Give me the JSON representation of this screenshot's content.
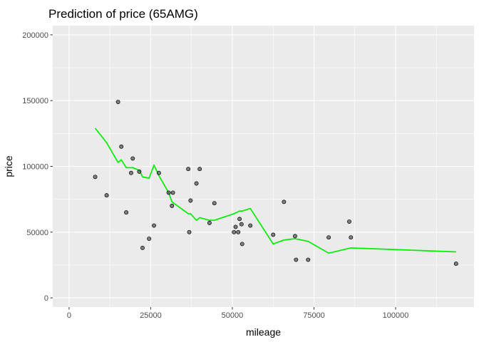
{
  "chart_data": {
    "type": "scatter",
    "title": "Prediction of price (65AMG)",
    "xlabel": "mileage",
    "ylabel": "price",
    "xlim": [
      -5000,
      124000
    ],
    "ylim": [
      -7000,
      207000
    ],
    "xticks": [
      0,
      25000,
      50000,
      75000,
      100000
    ],
    "xtick_labels": [
      "0",
      "25000",
      "50000",
      "75000",
      "100000"
    ],
    "yticks": [
      0,
      50000,
      100000,
      150000,
      200000
    ],
    "ytick_labels": [
      "0",
      "50000",
      "100000",
      "150000",
      "200000"
    ],
    "grid": true,
    "background": "#ebebeb",
    "colors": {
      "points": "#595959",
      "line": "#00ee00"
    },
    "series": [
      {
        "type": "scatter",
        "points": [
          {
            "x": 8000,
            "y": 92000
          },
          {
            "x": 11500,
            "y": 78000
          },
          {
            "x": 15000,
            "y": 149000
          },
          {
            "x": 16000,
            "y": 115000
          },
          {
            "x": 17500,
            "y": 65000
          },
          {
            "x": 19000,
            "y": 95000
          },
          {
            "x": 19500,
            "y": 106000
          },
          {
            "x": 21500,
            "y": 96000
          },
          {
            "x": 22500,
            "y": 38000
          },
          {
            "x": 24500,
            "y": 45000
          },
          {
            "x": 26000,
            "y": 55000
          },
          {
            "x": 27500,
            "y": 95000
          },
          {
            "x": 30500,
            "y": 80000
          },
          {
            "x": 31500,
            "y": 70000
          },
          {
            "x": 31800,
            "y": 80000
          },
          {
            "x": 36500,
            "y": 98000
          },
          {
            "x": 36800,
            "y": 50000
          },
          {
            "x": 37200,
            "y": 74000
          },
          {
            "x": 39000,
            "y": 87000
          },
          {
            "x": 40000,
            "y": 98000
          },
          {
            "x": 43000,
            "y": 57000
          },
          {
            "x": 44500,
            "y": 72000
          },
          {
            "x": 50500,
            "y": 50000
          },
          {
            "x": 51000,
            "y": 54000
          },
          {
            "x": 51800,
            "y": 50000
          },
          {
            "x": 52200,
            "y": 60000
          },
          {
            "x": 52800,
            "y": 56000
          },
          {
            "x": 53000,
            "y": 41000
          },
          {
            "x": 55500,
            "y": 55000
          },
          {
            "x": 62500,
            "y": 48000
          },
          {
            "x": 65800,
            "y": 73000
          },
          {
            "x": 69200,
            "y": 47000
          },
          {
            "x": 69500,
            "y": 29000
          },
          {
            "x": 73200,
            "y": 29000
          },
          {
            "x": 79500,
            "y": 46000
          },
          {
            "x": 85800,
            "y": 58000
          },
          {
            "x": 86300,
            "y": 46000
          },
          {
            "x": 118500,
            "y": 26000
          }
        ]
      },
      {
        "type": "line",
        "points": [
          {
            "x": 8000,
            "y": 129000
          },
          {
            "x": 11500,
            "y": 118000
          },
          {
            "x": 15000,
            "y": 103000
          },
          {
            "x": 16000,
            "y": 105000
          },
          {
            "x": 17500,
            "y": 99000
          },
          {
            "x": 19500,
            "y": 99000
          },
          {
            "x": 21500,
            "y": 97000
          },
          {
            "x": 22500,
            "y": 92000
          },
          {
            "x": 24500,
            "y": 91000
          },
          {
            "x": 26000,
            "y": 101000
          },
          {
            "x": 27500,
            "y": 93000
          },
          {
            "x": 30500,
            "y": 80000
          },
          {
            "x": 31500,
            "y": 73000
          },
          {
            "x": 36500,
            "y": 64000
          },
          {
            "x": 37200,
            "y": 64000
          },
          {
            "x": 39000,
            "y": 59000
          },
          {
            "x": 40000,
            "y": 61000
          },
          {
            "x": 43000,
            "y": 59000
          },
          {
            "x": 44500,
            "y": 59000
          },
          {
            "x": 50500,
            "y": 64000
          },
          {
            "x": 52200,
            "y": 66000
          },
          {
            "x": 53000,
            "y": 66000
          },
          {
            "x": 55500,
            "y": 68000
          },
          {
            "x": 62500,
            "y": 41000
          },
          {
            "x": 65800,
            "y": 44000
          },
          {
            "x": 69200,
            "y": 45000
          },
          {
            "x": 73200,
            "y": 43000
          },
          {
            "x": 79500,
            "y": 34000
          },
          {
            "x": 86300,
            "y": 38000
          },
          {
            "x": 118500,
            "y": 35000
          }
        ]
      }
    ]
  }
}
